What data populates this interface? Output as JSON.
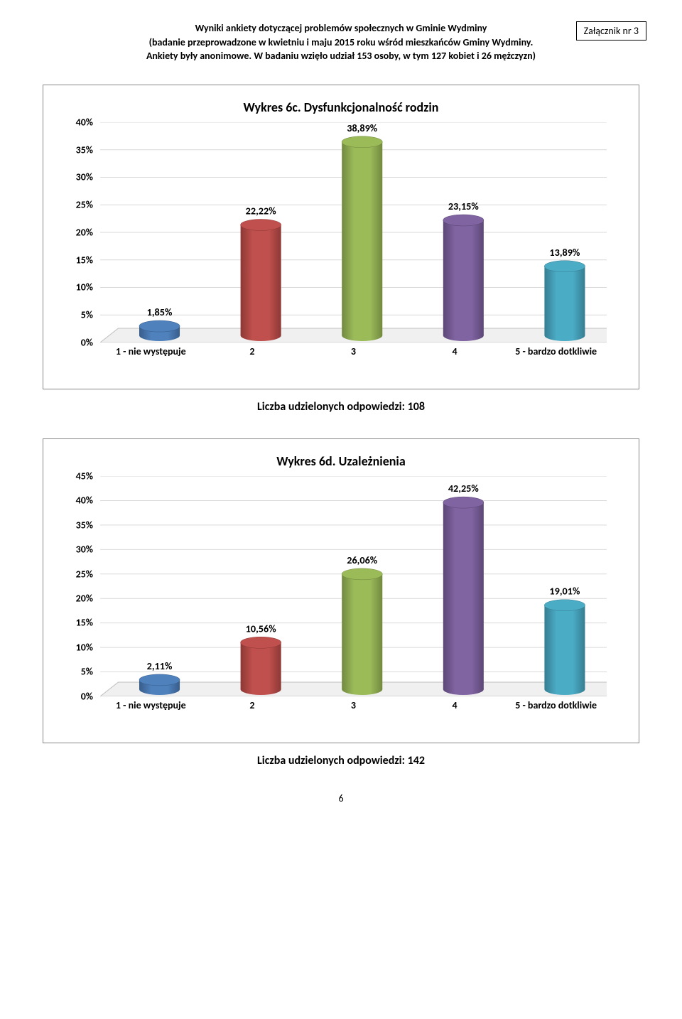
{
  "header": {
    "line1": "Wyniki ankiety dotyczącej problemów społecznych w Gminie Wydminy",
    "line2": "(badanie przeprowadzone w kwietniu i maju 2015 roku wśród mieszkańców Gminy Wydminy.",
    "line3": "Ankiety były anonimowe. W badaniu wzięło udział 153 osoby, w tym 127 kobiet i 26 mężczyzn)"
  },
  "appendix": "Załącznik nr 3",
  "colors": {
    "bar1_top": "#4f81bd",
    "bar1_side": "#385d8a",
    "bar2_top": "#c0504d",
    "bar2_side": "#8c3836",
    "bar3_top": "#9bbb59",
    "bar3_side": "#71893f",
    "bar4_top": "#8064a2",
    "bar4_side": "#5c4776",
    "bar5_top": "#4bacc6",
    "bar5_side": "#357d91",
    "grid": "#d9d9d9",
    "floor": "#f0f0f0",
    "floor_edge": "#bfbfbf"
  },
  "chart6c": {
    "title": "Wykres 6c. Dysfunkcjonalność rodzin",
    "caption": "Liczba udzielonych odpowiedzi: 108",
    "ymax": 40,
    "ystep": 5,
    "categories": [
      "1 - nie występuje",
      "2",
      "3",
      "4",
      "5 - bardzo dotkliwie"
    ],
    "values": [
      1.85,
      22.22,
      38.89,
      23.15,
      13.89
    ],
    "labels": [
      "1,85%",
      "22,22%",
      "38,89%",
      "23,15%",
      "13,89%"
    ]
  },
  "chart6d": {
    "title": "Wykres 6d. Uzależnienia",
    "caption": "Liczba udzielonych odpowiedzi: 142",
    "ymax": 45,
    "ystep": 5,
    "categories": [
      "1 - nie występuje",
      "2",
      "3",
      "4",
      "5 - bardzo dotkliwie"
    ],
    "values": [
      2.11,
      10.56,
      26.06,
      42.25,
      19.01
    ],
    "labels": [
      "2,11%",
      "10,56%",
      "26,06%",
      "42,25%",
      "19,01%"
    ]
  },
  "pageNumber": "6"
}
